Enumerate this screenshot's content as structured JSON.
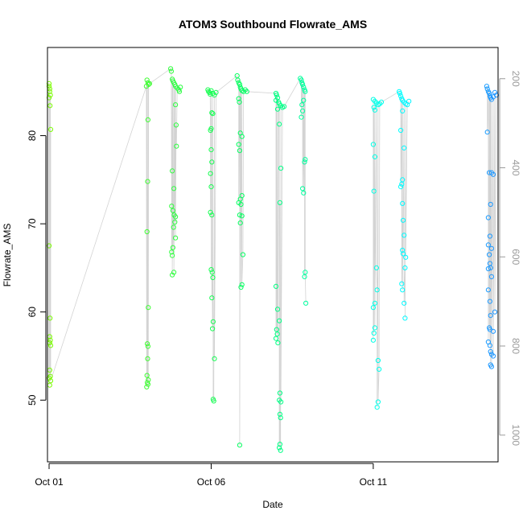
{
  "chart_data": {
    "type": "scatter",
    "title": "ATOM3 Southbound Flowrate_AMS",
    "xlabel": "Date",
    "ylabel": "Flowrate_AMS",
    "xlim": [
      -0.05,
      13.85
    ],
    "ylim": [
      43.0,
      90.0
    ],
    "x_ticks": [
      {
        "value": 0,
        "label": "Oct 01"
      },
      {
        "value": 5,
        "label": "Oct 06"
      },
      {
        "value": 10,
        "label": "Oct 11"
      }
    ],
    "y_ticks": [
      50,
      60,
      70,
      80
    ],
    "y2_ticks": [
      200,
      400,
      600,
      800,
      1000
    ],
    "y2lim": [
      1060,
      130
    ],
    "grid": false,
    "legend": "none",
    "point_color_start": "#7CFC00",
    "point_color_mid": "#00FF66",
    "point_color_end2": "#00FFFF",
    "point_color_end": "#1E90FF",
    "series_line_color": "#C0C0C0",
    "series": [
      {
        "points": [
          [
            0.0,
            85.9
          ],
          [
            0.0,
            85.6
          ],
          [
            0.02,
            85.3
          ],
          [
            0.02,
            85.0
          ],
          [
            0.04,
            84.6
          ],
          [
            0.0,
            84.3
          ],
          [
            0.03,
            83.4
          ],
          [
            0.05,
            80.7
          ],
          [
            0.0,
            67.5
          ],
          [
            0.03,
            59.3
          ],
          [
            0.02,
            57.2
          ],
          [
            0.04,
            56.8
          ],
          [
            0.02,
            56.5
          ],
          [
            0.05,
            56.2
          ],
          [
            0.02,
            53.4
          ],
          [
            0.04,
            52.7
          ],
          [
            0.0,
            52.5
          ],
          [
            0.05,
            52.2
          ],
          [
            0.02,
            51.7
          ],
          [
            3.02,
            86.3
          ],
          [
            3.05,
            86.0
          ],
          [
            3.07,
            85.8
          ],
          [
            3.0,
            85.6
          ],
          [
            3.1,
            85.9
          ],
          [
            3.05,
            81.8
          ],
          [
            3.04,
            74.8
          ],
          [
            3.02,
            69.1
          ],
          [
            3.06,
            60.5
          ],
          [
            3.03,
            56.4
          ],
          [
            3.05,
            56.1
          ],
          [
            3.04,
            54.7
          ],
          [
            3.02,
            52.8
          ],
          [
            3.06,
            52.3
          ],
          [
            3.03,
            52.0
          ],
          [
            3.05,
            51.8
          ],
          [
            3.01,
            51.5
          ],
          [
            3.75,
            87.6
          ],
          [
            3.77,
            87.3
          ],
          [
            3.8,
            86.4
          ],
          [
            3.82,
            86.2
          ],
          [
            3.85,
            86.0
          ],
          [
            3.88,
            85.8
          ],
          [
            3.9,
            85.6
          ],
          [
            3.95,
            85.4
          ],
          [
            4.0,
            85.2
          ],
          [
            4.02,
            85.0
          ],
          [
            4.05,
            85.5
          ],
          [
            3.9,
            83.5
          ],
          [
            3.92,
            81.2
          ],
          [
            3.93,
            78.8
          ],
          [
            3.8,
            76.0
          ],
          [
            3.85,
            74.0
          ],
          [
            3.78,
            72.0
          ],
          [
            3.82,
            71.5
          ],
          [
            3.86,
            71.0
          ],
          [
            3.9,
            70.8
          ],
          [
            3.88,
            70.2
          ],
          [
            3.84,
            69.6
          ],
          [
            3.9,
            68.4
          ],
          [
            3.82,
            67.3
          ],
          [
            3.78,
            66.8
          ],
          [
            3.8,
            66.4
          ],
          [
            3.85,
            64.5
          ],
          [
            3.8,
            64.2
          ]
        ]
      },
      {
        "points": [
          [
            4.9,
            85.2
          ],
          [
            4.92,
            85.0
          ],
          [
            4.95,
            84.9
          ],
          [
            4.97,
            84.7
          ],
          [
            5.0,
            85.1
          ],
          [
            5.05,
            84.8
          ],
          [
            5.1,
            84.6
          ],
          [
            5.15,
            84.9
          ],
          [
            5.02,
            82.6
          ],
          [
            5.05,
            82.5
          ],
          [
            5.0,
            80.8
          ],
          [
            4.98,
            80.6
          ],
          [
            5.0,
            78.4
          ],
          [
            5.02,
            77.0
          ],
          [
            4.98,
            75.7
          ],
          [
            5.0,
            74.2
          ],
          [
            4.98,
            71.3
          ],
          [
            5.02,
            71.0
          ],
          [
            5.0,
            64.8
          ],
          [
            5.03,
            64.5
          ],
          [
            5.05,
            63.9
          ],
          [
            5.02,
            61.6
          ],
          [
            5.06,
            58.9
          ],
          [
            5.04,
            58.1
          ],
          [
            5.1,
            54.7
          ],
          [
            5.06,
            50.1
          ],
          [
            5.08,
            49.9
          ],
          [
            5.8,
            86.8
          ],
          [
            5.82,
            86.3
          ],
          [
            5.85,
            86.0
          ],
          [
            5.88,
            85.8
          ],
          [
            5.9,
            85.5
          ],
          [
            5.92,
            85.3
          ],
          [
            5.95,
            85.1
          ],
          [
            6.0,
            85.0
          ],
          [
            6.05,
            85.2
          ],
          [
            6.1,
            85.0
          ],
          [
            5.85,
            84.2
          ],
          [
            5.87,
            83.8
          ],
          [
            5.9,
            80.3
          ],
          [
            5.95,
            79.9
          ],
          [
            5.85,
            79.0
          ],
          [
            5.88,
            78.3
          ],
          [
            5.95,
            73.2
          ],
          [
            5.9,
            72.8
          ],
          [
            5.85,
            72.4
          ],
          [
            5.92,
            72.2
          ],
          [
            5.88,
            71.0
          ],
          [
            5.95,
            70.9
          ],
          [
            5.9,
            70.1
          ],
          [
            5.98,
            66.5
          ],
          [
            5.95,
            63.1
          ],
          [
            5.92,
            62.8
          ],
          [
            5.88,
            44.9
          ],
          [
            7.0,
            84.8
          ],
          [
            7.02,
            84.6
          ],
          [
            7.05,
            84.3
          ],
          [
            7.0,
            84.0
          ],
          [
            7.08,
            83.8
          ],
          [
            7.1,
            83.6
          ],
          [
            7.15,
            83.4
          ],
          [
            7.2,
            83.2
          ],
          [
            7.05,
            83.0
          ],
          [
            7.25,
            83.3
          ],
          [
            7.1,
            81.3
          ],
          [
            7.15,
            76.3
          ],
          [
            7.12,
            72.4
          ],
          [
            7.0,
            62.9
          ],
          [
            7.05,
            60.3
          ],
          [
            7.1,
            59.0
          ],
          [
            7.02,
            58.0
          ],
          [
            7.04,
            57.5
          ],
          [
            7.0,
            57.0
          ],
          [
            7.06,
            56.5
          ],
          [
            7.12,
            50.8
          ],
          [
            7.1,
            50.0
          ],
          [
            7.15,
            49.8
          ],
          [
            7.12,
            48.4
          ],
          [
            7.14,
            48.0
          ],
          [
            7.12,
            45.0
          ],
          [
            7.1,
            44.6
          ],
          [
            7.14,
            44.3
          ],
          [
            7.75,
            86.5
          ],
          [
            7.78,
            86.3
          ],
          [
            7.8,
            86.0
          ],
          [
            7.82,
            85.8
          ],
          [
            7.85,
            85.5
          ],
          [
            7.88,
            85.2
          ],
          [
            7.9,
            85.0
          ],
          [
            7.85,
            84.0
          ],
          [
            7.8,
            83.5
          ],
          [
            7.82,
            82.8
          ],
          [
            7.78,
            82.1
          ],
          [
            7.9,
            77.3
          ],
          [
            7.88,
            77.0
          ],
          [
            7.82,
            74.0
          ],
          [
            7.85,
            73.5
          ],
          [
            7.9,
            64.5
          ],
          [
            7.88,
            64.0
          ],
          [
            7.92,
            61.0
          ]
        ]
      },
      {
        "points": [
          [
            10.0,
            84.1
          ],
          [
            10.05,
            83.9
          ],
          [
            10.1,
            83.7
          ],
          [
            10.15,
            83.5
          ],
          [
            10.2,
            83.6
          ],
          [
            10.25,
            83.8
          ],
          [
            10.02,
            83.2
          ],
          [
            10.05,
            82.9
          ],
          [
            10.0,
            79.0
          ],
          [
            10.05,
            77.6
          ],
          [
            10.02,
            73.7
          ],
          [
            10.1,
            65.0
          ],
          [
            10.12,
            62.5
          ],
          [
            10.05,
            61.0
          ],
          [
            10.0,
            60.5
          ],
          [
            10.05,
            58.2
          ],
          [
            10.02,
            57.6
          ],
          [
            10.0,
            56.8
          ],
          [
            10.15,
            54.5
          ],
          [
            10.18,
            53.5
          ],
          [
            10.15,
            49.8
          ],
          [
            10.12,
            49.2
          ],
          [
            10.8,
            85.0
          ],
          [
            10.82,
            84.8
          ],
          [
            10.85,
            84.5
          ],
          [
            10.88,
            84.2
          ],
          [
            10.9,
            84.0
          ],
          [
            10.95,
            83.8
          ],
          [
            11.0,
            83.6
          ],
          [
            11.05,
            83.5
          ],
          [
            11.1,
            83.9
          ],
          [
            10.9,
            82.8
          ],
          [
            10.85,
            80.6
          ],
          [
            10.95,
            78.6
          ],
          [
            10.9,
            75.0
          ],
          [
            10.88,
            74.5
          ],
          [
            10.85,
            74.2
          ],
          [
            10.9,
            72.3
          ],
          [
            10.92,
            70.4
          ],
          [
            10.95,
            68.7
          ],
          [
            10.9,
            67.0
          ],
          [
            10.92,
            66.6
          ],
          [
            11.0,
            66.2
          ],
          [
            10.98,
            65.0
          ],
          [
            10.88,
            63.2
          ],
          [
            10.9,
            62.5
          ],
          [
            10.95,
            61.0
          ],
          [
            10.98,
            59.3
          ]
        ]
      },
      {
        "points": [
          [
            13.5,
            85.6
          ],
          [
            13.52,
            85.3
          ],
          [
            13.55,
            85.0
          ],
          [
            13.58,
            84.8
          ],
          [
            13.6,
            84.5
          ],
          [
            13.62,
            84.3
          ],
          [
            13.65,
            84.1
          ],
          [
            13.7,
            84.4
          ],
          [
            13.75,
            84.9
          ],
          [
            13.8,
            84.6
          ],
          [
            13.52,
            80.4
          ],
          [
            13.58,
            75.8
          ],
          [
            13.65,
            75.8
          ],
          [
            13.7,
            75.6
          ],
          [
            13.62,
            72.2
          ],
          [
            13.55,
            70.7
          ],
          [
            13.6,
            68.6
          ],
          [
            13.55,
            67.6
          ],
          [
            13.65,
            67.2
          ],
          [
            13.58,
            66.5
          ],
          [
            13.6,
            65.5
          ],
          [
            13.62,
            65.0
          ],
          [
            13.55,
            64.9
          ],
          [
            13.65,
            64.0
          ],
          [
            13.55,
            62.5
          ],
          [
            13.6,
            61.2
          ],
          [
            13.62,
            59.6
          ],
          [
            13.58,
            58.2
          ],
          [
            13.6,
            58.0
          ],
          [
            13.7,
            57.8
          ],
          [
            13.55,
            56.6
          ],
          [
            13.6,
            56.2
          ],
          [
            13.62,
            55.5
          ],
          [
            13.65,
            55.2
          ],
          [
            13.7,
            55.0
          ],
          [
            13.62,
            54.0
          ],
          [
            13.65,
            53.8
          ],
          [
            13.75,
            60.0
          ]
        ]
      }
    ]
  }
}
